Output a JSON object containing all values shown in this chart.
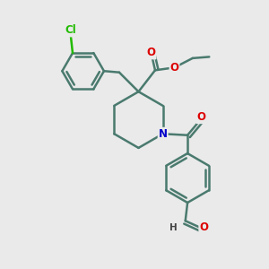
{
  "background_color": "#eaeaea",
  "bond_color": "#4a7a6e",
  "bond_width": 1.8,
  "dbo": 0.12,
  "atom_colors": {
    "O": "#dd0000",
    "N": "#0000cc",
    "Cl": "#22bb00",
    "H": "#444444"
  },
  "font_size_atom": 8.5,
  "font_size_h": 7.5
}
